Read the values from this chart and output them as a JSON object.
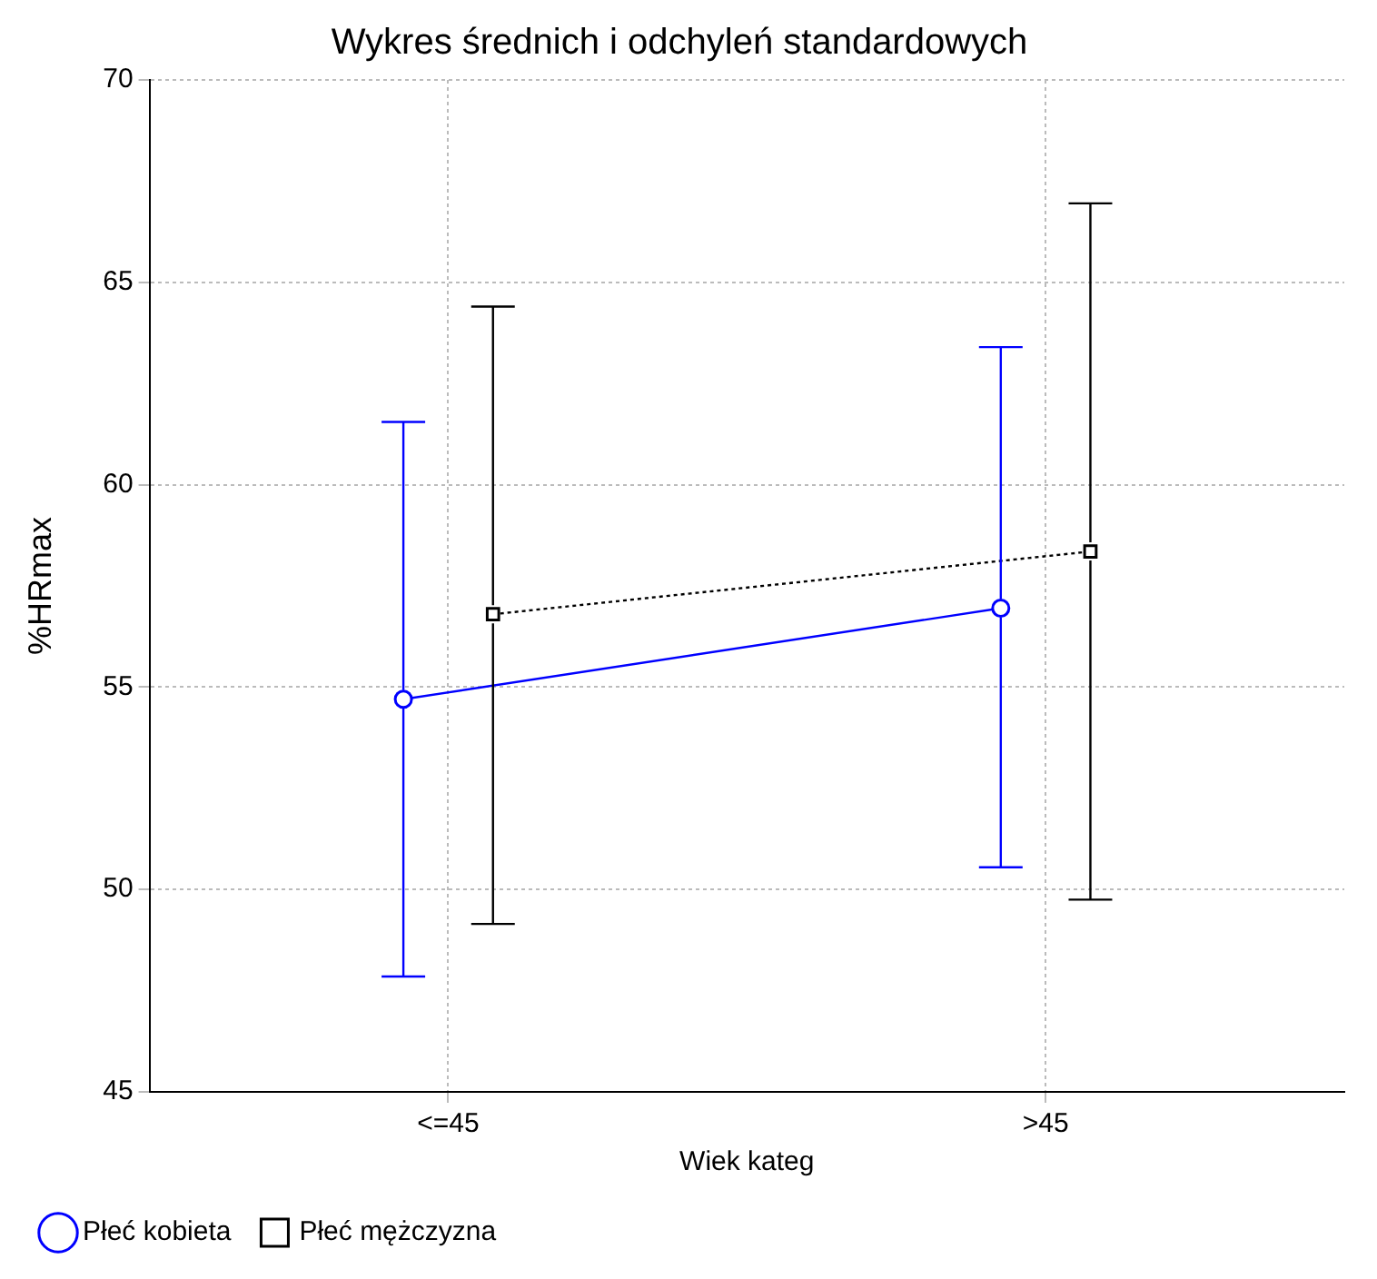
{
  "chart_data": {
    "type": "line",
    "title": "Wykres średnich i odchyleń standardowych",
    "xlabel": "Wiek kateg",
    "ylabel": "%HRmax",
    "categories": [
      "<=45",
      ">45"
    ],
    "series": [
      {
        "name": "Płeć kobieta",
        "color": "#0000ff",
        "values": [
          54.7,
          56.95
        ],
        "errors": [
          [
            47.85,
            61.55
          ],
          [
            50.55,
            63.4
          ]
        ],
        "marker": "circle",
        "line_style": "solid"
      },
      {
        "name": "Płeć mężczyzna",
        "color": "#000000",
        "values": [
          56.8,
          58.35
        ],
        "errors": [
          [
            49.15,
            64.4
          ],
          [
            49.75,
            66.95
          ]
        ],
        "marker": "square",
        "line_style": "dotted"
      }
    ],
    "ylim": [
      45,
      70
    ],
    "yticks": [
      45,
      50,
      55,
      60,
      65,
      70
    ],
    "grid": true,
    "legend": "bottom left"
  }
}
